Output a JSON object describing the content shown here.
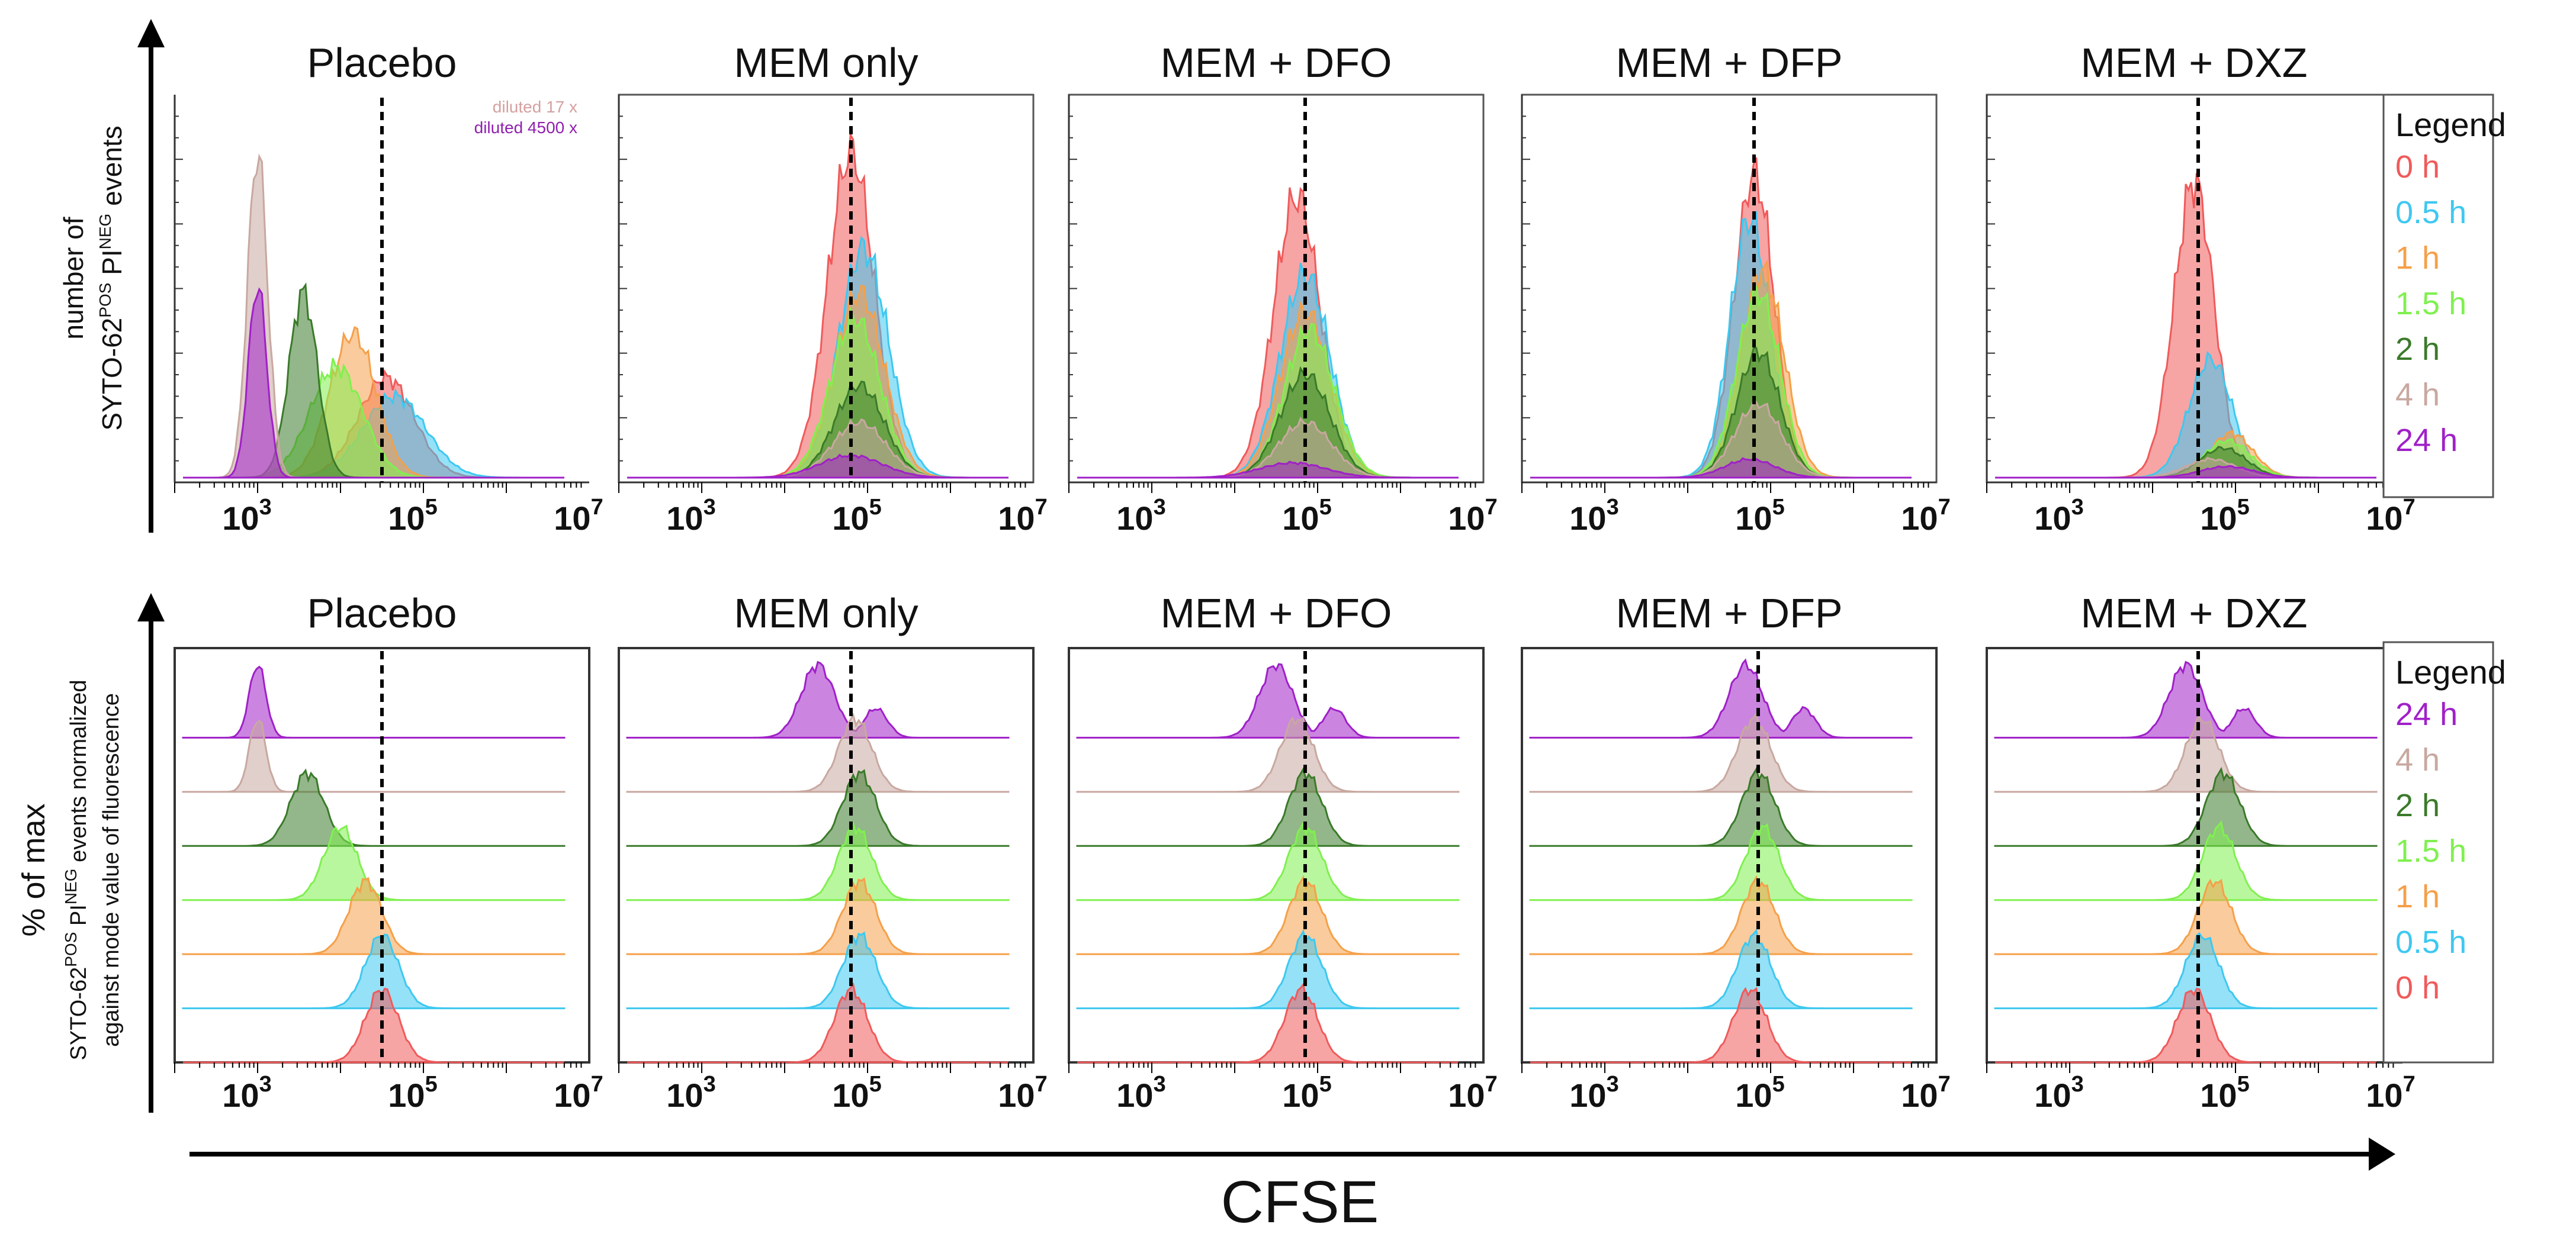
{
  "chart_data": [
    {
      "type": "area",
      "panel_set": "top",
      "description": "Overlaid CFSE histograms",
      "ylabel_line1": "number of",
      "ylabel_line2_prefix": "SYTO-62",
      "ylabel_line2_sup1": "POS",
      "ylabel_line2_mid": " PI",
      "ylabel_line2_sup2": "NEG",
      "ylabel_line2_suffix": " events",
      "x_scale": "log10",
      "xlim": [
        100,
        10000000
      ],
      "x_tick_labels": [
        "10",
        "3",
        "10",
        "5",
        "10",
        "7"
      ],
      "x_tick_exponents": [
        3,
        5,
        7
      ],
      "legend_title": "Legend",
      "legend": [
        "0 h",
        "0.5 h",
        "1 h",
        "1.5 h",
        "2 h",
        "4 h",
        "24 h"
      ],
      "placebo_notes": [
        "diluted 17 x",
        "diluted 4500 x"
      ],
      "panels": [
        {
          "title": "Placebo",
          "marker_log10": 4.5,
          "series": [
            {
              "name": "0 h",
              "peak_log10": 4.55,
              "width": 0.34,
              "height": 0.27
            },
            {
              "name": "0.5 h",
              "peak_log10": 4.65,
              "width": 0.38,
              "height": 0.22
            },
            {
              "name": "1 h",
              "peak_log10": 4.15,
              "width": 0.28,
              "height": 0.39
            },
            {
              "name": "1.5 h",
              "peak_log10": 3.95,
              "width": 0.32,
              "height": 0.3
            },
            {
              "name": "2 h",
              "peak_log10": 3.55,
              "width": 0.17,
              "height": 0.5
            },
            {
              "name": "4 h",
              "peak_log10": 3.0,
              "width": 0.12,
              "height": 0.88
            },
            {
              "name": "24 h",
              "peak_log10": 3.0,
              "width": 0.11,
              "height": 0.52
            }
          ]
        },
        {
          "title": "MEM only",
          "marker_log10": 4.8,
          "series": [
            {
              "name": "0 h",
              "peak_log10": 4.8,
              "width": 0.28,
              "height": 0.88
            },
            {
              "name": "0.5 h",
              "peak_log10": 4.95,
              "width": 0.3,
              "height": 0.62
            },
            {
              "name": "1 h",
              "peak_log10": 4.9,
              "width": 0.3,
              "height": 0.5
            },
            {
              "name": "1.5 h",
              "peak_log10": 4.85,
              "width": 0.3,
              "height": 0.43
            },
            {
              "name": "2 h",
              "peak_log10": 4.9,
              "width": 0.3,
              "height": 0.25
            },
            {
              "name": "4 h",
              "peak_log10": 4.9,
              "width": 0.32,
              "height": 0.15
            },
            {
              "name": "24 h",
              "peak_log10": 4.8,
              "width": 0.38,
              "height": 0.06
            }
          ]
        },
        {
          "title": "MEM + DFO",
          "marker_log10": 4.85,
          "series": [
            {
              "name": "0 h",
              "peak_log10": 4.75,
              "width": 0.28,
              "height": 0.76
            },
            {
              "name": "0.5 h",
              "peak_log10": 4.85,
              "width": 0.3,
              "height": 0.55
            },
            {
              "name": "1 h",
              "peak_log10": 4.85,
              "width": 0.3,
              "height": 0.45
            },
            {
              "name": "1.5 h",
              "peak_log10": 4.9,
              "width": 0.3,
              "height": 0.4
            },
            {
              "name": "2 h",
              "peak_log10": 4.85,
              "width": 0.3,
              "height": 0.28
            },
            {
              "name": "4 h",
              "peak_log10": 4.85,
              "width": 0.32,
              "height": 0.15
            },
            {
              "name": "24 h",
              "peak_log10": 4.7,
              "width": 0.4,
              "height": 0.04
            }
          ]
        },
        {
          "title": "MEM + DFP",
          "marker_log10": 4.8,
          "series": [
            {
              "name": "0 h",
              "peak_log10": 4.8,
              "width": 0.24,
              "height": 0.82
            },
            {
              "name": "0.5 h",
              "peak_log10": 4.75,
              "width": 0.24,
              "height": 0.7
            },
            {
              "name": "1 h",
              "peak_log10": 4.9,
              "width": 0.26,
              "height": 0.56
            },
            {
              "name": "1.5 h",
              "peak_log10": 4.85,
              "width": 0.26,
              "height": 0.5
            },
            {
              "name": "2 h",
              "peak_log10": 4.85,
              "width": 0.26,
              "height": 0.34
            },
            {
              "name": "4 h",
              "peak_log10": 4.85,
              "width": 0.28,
              "height": 0.2
            },
            {
              "name": "24 h",
              "peak_log10": 4.75,
              "width": 0.3,
              "height": 0.05
            }
          ]
        },
        {
          "title": "MEM + DXZ",
          "marker_log10": 4.55,
          "series": [
            {
              "name": "0 h",
              "peak_log10": 4.5,
              "width": 0.24,
              "height": 0.8
            },
            {
              "name": "0.5 h",
              "peak_log10": 4.7,
              "width": 0.26,
              "height": 0.32
            },
            {
              "name": "1 h",
              "peak_log10": 4.95,
              "width": 0.26,
              "height": 0.12
            },
            {
              "name": "1.5 h",
              "peak_log10": 4.9,
              "width": 0.28,
              "height": 0.1
            },
            {
              "name": "2 h",
              "peak_log10": 4.85,
              "width": 0.28,
              "height": 0.08
            },
            {
              "name": "4 h",
              "peak_log10": 4.7,
              "width": 0.3,
              "height": 0.05
            },
            {
              "name": "24 h",
              "peak_log10": 4.9,
              "width": 0.32,
              "height": 0.03
            }
          ]
        }
      ]
    },
    {
      "type": "area",
      "panel_set": "bottom",
      "description": "Offset (stacked) CFSE histograms normalized to mode",
      "ylabel_line1": "% of max",
      "ylabel_line2_prefix": "SYTO-62",
      "ylabel_line2_sup1": "POS",
      "ylabel_line2_mid": " PI",
      "ylabel_line2_sup2": "NEG",
      "ylabel_line2_suffix": " events normalized",
      "ylabel_line3": "against mode value of fluorescence",
      "x_scale": "log10",
      "xlim": [
        100,
        10000000
      ],
      "x_tick_exponents": [
        3,
        5,
        7
      ],
      "legend_title": "Legend",
      "legend": [
        "24 h",
        "4 h",
        "2 h",
        "1.5 h",
        "1 h",
        "0.5 h",
        "0 h"
      ],
      "panels": [
        {
          "title": "Placebo",
          "marker_log10": 4.5,
          "series": [
            {
              "name": "24 h",
              "peak_log10": 3.0
            },
            {
              "name": "4 h",
              "peak_log10": 3.0
            },
            {
              "name": "2 h",
              "peak_log10": 3.6
            },
            {
              "name": "1.5 h",
              "peak_log10": 4.0
            },
            {
              "name": "1 h",
              "peak_log10": 4.3
            },
            {
              "name": "0.5 h",
              "peak_log10": 4.5
            },
            {
              "name": "0 h",
              "peak_log10": 4.5
            }
          ]
        },
        {
          "title": "MEM only",
          "marker_log10": 4.8,
          "series": [
            {
              "name": "24 h",
              "peak_log10": 4.4
            },
            {
              "name": "4 h",
              "peak_log10": 4.85
            },
            {
              "name": "2 h",
              "peak_log10": 4.9
            },
            {
              "name": "1.5 h",
              "peak_log10": 4.85
            },
            {
              "name": "1 h",
              "peak_log10": 4.9
            },
            {
              "name": "0.5 h",
              "peak_log10": 4.9
            },
            {
              "name": "0 h",
              "peak_log10": 4.8
            }
          ]
        },
        {
          "title": "MEM + DFO",
          "marker_log10": 4.85,
          "series": [
            {
              "name": "24 h",
              "peak_log10": 4.5
            },
            {
              "name": "4 h",
              "peak_log10": 4.75
            },
            {
              "name": "2 h",
              "peak_log10": 4.85
            },
            {
              "name": "1.5 h",
              "peak_log10": 4.85
            },
            {
              "name": "1 h",
              "peak_log10": 4.85
            },
            {
              "name": "0.5 h",
              "peak_log10": 4.85
            },
            {
              "name": "0 h",
              "peak_log10": 4.8
            }
          ]
        },
        {
          "title": "MEM + DFP",
          "marker_log10": 4.85,
          "series": [
            {
              "name": "24 h",
              "peak_log10": 4.7
            },
            {
              "name": "4 h",
              "peak_log10": 4.8
            },
            {
              "name": "2 h",
              "peak_log10": 4.85
            },
            {
              "name": "1.5 h",
              "peak_log10": 4.9
            },
            {
              "name": "1 h",
              "peak_log10": 4.85
            },
            {
              "name": "0.5 h",
              "peak_log10": 4.8
            },
            {
              "name": "0 h",
              "peak_log10": 4.75
            }
          ]
        },
        {
          "title": "MEM + DXZ",
          "marker_log10": 4.55,
          "series": [
            {
              "name": "24 h",
              "peak_log10": 4.4
            },
            {
              "name": "4 h",
              "peak_log10": 4.6
            },
            {
              "name": "2 h",
              "peak_log10": 4.85
            },
            {
              "name": "1.5 h",
              "peak_log10": 4.8
            },
            {
              "name": "1 h",
              "peak_log10": 4.75
            },
            {
              "name": "0.5 h",
              "peak_log10": 4.6
            },
            {
              "name": "0 h",
              "peak_log10": 4.5
            }
          ]
        }
      ]
    }
  ],
  "xlabel": "CFSE",
  "colors": {
    "0 h": "#f05a5a",
    "0.5 h": "#3ec8f0",
    "1 h": "#f5a04a",
    "1.5 h": "#80f050",
    "2 h": "#3a7a2a",
    "4 h": "#c8a8a0",
    "24 h": "#a020c8",
    "diluted 17 x": "#d4a0a0",
    "diluted 4500 x": "#9020b0"
  }
}
